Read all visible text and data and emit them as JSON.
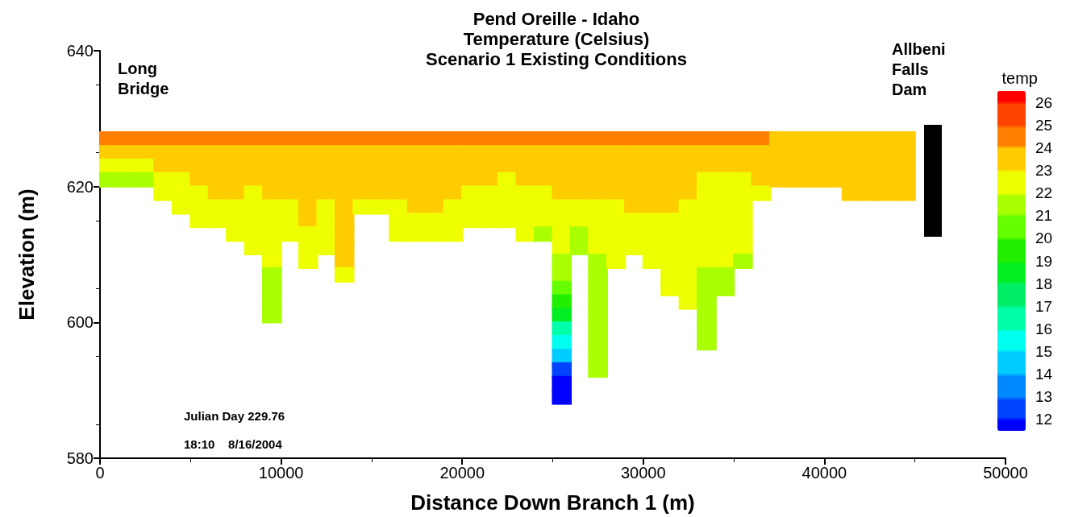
{
  "chart_data": {
    "type": "scatter",
    "title": "Pend Oreille - Idaho\nTemperature (Celsius)\nScenario 1 Existing Conditions",
    "xlabel": "Distance Down Branch 1 (m)",
    "ylabel": "Elevation (m)",
    "clabel": "temp",
    "annotations": [
      "Long Bridge",
      "Allbeni Falls Dam",
      "Julian Day 229.76",
      "18:10    8/16/2004"
    ],
    "xlim": [
      0,
      50000
    ],
    "xticks": [
      0,
      10000,
      20000,
      30000,
      40000,
      50000
    ],
    "ylim": [
      580,
      640
    ],
    "yticks": [
      580,
      600,
      620,
      640
    ],
    "clim": [
      11.5,
      26.5
    ],
    "cticks": [
      12,
      13,
      14,
      15,
      16,
      17,
      18,
      19,
      20,
      21,
      22,
      23,
      24,
      25,
      26
    ],
    "marker": "square",
    "grid": false,
    "series": [
      {
        "x": [
          500,
          500,
          500,
          500
        ],
        "values": [
          627,
          625,
          623,
          621
        ],
        "cvalues": [
          24.5,
          23.5,
          22.5,
          21.5
        ],
        "colors": [
          "#ff8000",
          "#ffcc00",
          "#eeff00",
          "#aaff00"
        ]
      },
      {
        "x": [
          1500,
          1500,
          1500,
          1500
        ],
        "values": [
          627,
          625,
          623,
          621
        ],
        "cvalues": [
          24.5,
          23.5,
          22.5,
          21.5
        ],
        "colors": [
          "#ff8000",
          "#ffcc00",
          "#eeff00",
          "#aaff00"
        ]
      },
      {
        "x": [
          2500,
          2500,
          2500,
          2500
        ],
        "values": [
          627,
          625,
          623,
          621
        ],
        "cvalues": [
          24.5,
          23.5,
          22.5,
          21.5
        ],
        "colors": [
          "#ff8000",
          "#ffcc00",
          "#eeff00",
          "#aaff00"
        ]
      },
      {
        "x": [
          3500,
          3500,
          3500,
          3500,
          3500
        ],
        "values": [
          627,
          625,
          623,
          621,
          619
        ],
        "cvalues": [
          24.5,
          23.5,
          23.5,
          22.5,
          22.5
        ],
        "colors": [
          "#ff8000",
          "#ffcc00",
          "#ffcc00",
          "#eeff00",
          "#eeff00"
        ]
      },
      {
        "x": [
          4500,
          4500,
          4500,
          4500,
          4500,
          4500
        ],
        "values": [
          627,
          625,
          623,
          621,
          619,
          617
        ],
        "cvalues": [
          24.5,
          23.5,
          23.5,
          22.5,
          22.5,
          22.5
        ],
        "colors": [
          "#ff8000",
          "#ffcc00",
          "#ffcc00",
          "#eeff00",
          "#eeff00",
          "#eeff00"
        ]
      },
      {
        "x": [
          5500,
          5500,
          5500,
          5500,
          5500,
          5500,
          5500
        ],
        "values": [
          627,
          625,
          623,
          621,
          619,
          617,
          615
        ],
        "cvalues": [
          24.5,
          23.5,
          23.5,
          23.5,
          22.5,
          22.5,
          22.5
        ],
        "colors": [
          "#ff8000",
          "#ffcc00",
          "#ffcc00",
          "#ffcc00",
          "#eeff00",
          "#eeff00",
          "#eeff00"
        ]
      },
      {
        "x": [
          6500,
          6500,
          6500,
          6500,
          6500,
          6500,
          6500
        ],
        "values": [
          627,
          625,
          623,
          621,
          619,
          617,
          615
        ],
        "cvalues": [
          24.5,
          23.5,
          23.5,
          23.5,
          23.5,
          22.5,
          22.5
        ],
        "colors": [
          "#ff8000",
          "#ffcc00",
          "#ffcc00",
          "#ffcc00",
          "#ffcc00",
          "#eeff00",
          "#eeff00"
        ]
      },
      {
        "x": [
          7500,
          7500,
          7500,
          7500,
          7500,
          7500,
          7500,
          7500
        ],
        "values": [
          627,
          625,
          623,
          621,
          619,
          617,
          615,
          613
        ],
        "cvalues": [
          24.5,
          23.5,
          23.5,
          23.5,
          23.5,
          22.5,
          22.5,
          22.5
        ],
        "colors": [
          "#ff8000",
          "#ffcc00",
          "#ffcc00",
          "#ffcc00",
          "#ffcc00",
          "#eeff00",
          "#eeff00",
          "#eeff00"
        ]
      },
      {
        "x": [
          8500,
          8500,
          8500,
          8500,
          8500,
          8500,
          8500,
          8500,
          8500
        ],
        "values": [
          627,
          625,
          623,
          621,
          619,
          617,
          615,
          613,
          611
        ],
        "cvalues": [
          24.5,
          23.5,
          23.5,
          23.5,
          22.5,
          22.5,
          22.5,
          22.5,
          22.5
        ],
        "colors": [
          "#ff8000",
          "#ffcc00",
          "#ffcc00",
          "#ffcc00",
          "#eeff00",
          "#eeff00",
          "#eeff00",
          "#eeff00",
          "#eeff00"
        ]
      },
      {
        "x": [
          9500,
          9500,
          9500,
          9500,
          9500,
          9500,
          9500,
          9500,
          9500,
          9500,
          9500,
          9500,
          9500,
          9500
        ],
        "values": [
          627,
          625,
          623,
          621,
          619,
          617,
          615,
          613,
          611,
          609,
          607,
          605,
          603,
          601
        ],
        "cvalues": [
          24.5,
          23.5,
          23.5,
          23.5,
          23.5,
          22.5,
          22.5,
          22.5,
          22.5,
          22.5,
          21.5,
          21.5,
          21.5,
          21.5
        ],
        "colors": [
          "#ff8000",
          "#ffcc00",
          "#ffcc00",
          "#ffcc00",
          "#ffcc00",
          "#eeff00",
          "#eeff00",
          "#eeff00",
          "#eeff00",
          "#eeff00",
          "#aaff00",
          "#aaff00",
          "#aaff00",
          "#aaff00"
        ]
      },
      {
        "x": [
          10500,
          10500,
          10500,
          10500,
          10500,
          10500,
          10500,
          10500
        ],
        "values": [
          627,
          625,
          623,
          621,
          619,
          617,
          615,
          613
        ],
        "cvalues": [
          24.5,
          23.5,
          23.5,
          23.5,
          23.5,
          22.5,
          22.5,
          22.5
        ],
        "colors": [
          "#ff8000",
          "#ffcc00",
          "#ffcc00",
          "#ffcc00",
          "#ffcc00",
          "#eeff00",
          "#eeff00",
          "#eeff00"
        ]
      },
      {
        "x": [
          11500,
          11500,
          11500,
          11500,
          11500,
          11500,
          11500,
          11500,
          11500,
          11500
        ],
        "values": [
          627,
          625,
          623,
          621,
          619,
          617,
          615,
          613,
          611,
          609
        ],
        "cvalues": [
          24.5,
          23.5,
          23.5,
          23.5,
          23.5,
          23.5,
          23.5,
          22.5,
          22.5,
          22.5
        ],
        "colors": [
          "#ff8000",
          "#ffcc00",
          "#ffcc00",
          "#ffcc00",
          "#ffcc00",
          "#ffcc00",
          "#ffcc00",
          "#eeff00",
          "#eeff00",
          "#eeff00"
        ]
      },
      {
        "x": [
          12500,
          12500,
          12500,
          12500,
          12500,
          12500,
          12500,
          12500,
          12500
        ],
        "values": [
          627,
          625,
          623,
          621,
          619,
          617,
          615,
          613,
          611
        ],
        "cvalues": [
          24.5,
          23.5,
          23.5,
          23.5,
          23.5,
          22.5,
          22.5,
          22.5,
          22.5
        ],
        "colors": [
          "#ff8000",
          "#ffcc00",
          "#ffcc00",
          "#ffcc00",
          "#ffcc00",
          "#eeff00",
          "#eeff00",
          "#eeff00",
          "#eeff00"
        ]
      },
      {
        "x": [
          13500,
          13500,
          13500,
          13500,
          13500,
          13500,
          13500,
          13500,
          13500,
          13500,
          13500
        ],
        "values": [
          627,
          625,
          623,
          621,
          619,
          617,
          615,
          613,
          611,
          609,
          607
        ],
        "cvalues": [
          24.5,
          23.5,
          23.5,
          23.5,
          23.5,
          23.5,
          23.5,
          23.5,
          23.5,
          23.5,
          22.5
        ],
        "colors": [
          "#ff8000",
          "#ffcc00",
          "#ffcc00",
          "#ffcc00",
          "#ffcc00",
          "#ffcc00",
          "#ffcc00",
          "#ffcc00",
          "#ffcc00",
          "#ffcc00",
          "#eeff00"
        ]
      },
      {
        "x": [
          14500,
          14500,
          14500,
          14500,
          14500,
          14500
        ],
        "values": [
          627,
          625,
          623,
          621,
          619,
          617
        ],
        "cvalues": [
          24.5,
          23.5,
          23.5,
          23.5,
          23.5,
          22.5
        ],
        "colors": [
          "#ff8000",
          "#ffcc00",
          "#ffcc00",
          "#ffcc00",
          "#ffcc00",
          "#eeff00"
        ]
      },
      {
        "x": [
          15500,
          15500,
          15500,
          15500,
          15500,
          15500
        ],
        "values": [
          627,
          625,
          623,
          621,
          619,
          617
        ],
        "cvalues": [
          24.5,
          23.5,
          23.5,
          23.5,
          23.5,
          22.5
        ],
        "colors": [
          "#ff8000",
          "#ffcc00",
          "#ffcc00",
          "#ffcc00",
          "#ffcc00",
          "#eeff00"
        ]
      },
      {
        "x": [
          16500,
          16500,
          16500,
          16500,
          16500,
          16500,
          16500,
          16500
        ],
        "values": [
          627,
          625,
          623,
          621,
          619,
          617,
          615,
          613
        ],
        "cvalues": [
          24.5,
          23.5,
          23.5,
          23.5,
          23.5,
          22.5,
          22.5,
          22.5
        ],
        "colors": [
          "#ff8000",
          "#ffcc00",
          "#ffcc00",
          "#ffcc00",
          "#ffcc00",
          "#eeff00",
          "#eeff00",
          "#eeff00"
        ]
      },
      {
        "x": [
          17500,
          17500,
          17500,
          17500,
          17500,
          17500,
          17500,
          17500
        ],
        "values": [
          627,
          625,
          623,
          621,
          619,
          617,
          615,
          613
        ],
        "cvalues": [
          24.5,
          23.5,
          23.5,
          23.5,
          23.5,
          23.5,
          22.5,
          22.5
        ],
        "colors": [
          "#ff8000",
          "#ffcc00",
          "#ffcc00",
          "#ffcc00",
          "#ffcc00",
          "#ffcc00",
          "#eeff00",
          "#eeff00"
        ]
      },
      {
        "x": [
          18500,
          18500,
          18500,
          18500,
          18500,
          18500,
          18500,
          18500
        ],
        "values": [
          627,
          625,
          623,
          621,
          619,
          617,
          615,
          613
        ],
        "cvalues": [
          24.5,
          23.5,
          23.5,
          23.5,
          23.5,
          23.5,
          22.5,
          22.5
        ],
        "colors": [
          "#ff8000",
          "#ffcc00",
          "#ffcc00",
          "#ffcc00",
          "#ffcc00",
          "#ffcc00",
          "#eeff00",
          "#eeff00"
        ]
      },
      {
        "x": [
          19500,
          19500,
          19500,
          19500,
          19500,
          19500,
          19500,
          19500
        ],
        "values": [
          627,
          625,
          623,
          621,
          619,
          617,
          615,
          613
        ],
        "cvalues": [
          24.5,
          23.5,
          23.5,
          23.5,
          23.5,
          22.5,
          22.5,
          22.5
        ],
        "colors": [
          "#ff8000",
          "#ffcc00",
          "#ffcc00",
          "#ffcc00",
          "#ffcc00",
          "#eeff00",
          "#eeff00",
          "#eeff00"
        ]
      },
      {
        "x": [
          20500,
          20500,
          20500,
          20500,
          20500,
          20500,
          20500
        ],
        "values": [
          627,
          625,
          623,
          621,
          619,
          617,
          615
        ],
        "cvalues": [
          24.5,
          23.5,
          23.5,
          23.5,
          22.5,
          22.5,
          22.5
        ],
        "colors": [
          "#ff8000",
          "#ffcc00",
          "#ffcc00",
          "#ffcc00",
          "#eeff00",
          "#eeff00",
          "#eeff00"
        ]
      },
      {
        "x": [
          21500,
          21500,
          21500,
          21500,
          21500,
          21500,
          21500
        ],
        "values": [
          627,
          625,
          623,
          621,
          619,
          617,
          615
        ],
        "cvalues": [
          24.5,
          23.5,
          23.5,
          23.5,
          22.5,
          22.5,
          22.5
        ],
        "colors": [
          "#ff8000",
          "#ffcc00",
          "#ffcc00",
          "#ffcc00",
          "#eeff00",
          "#eeff00",
          "#eeff00"
        ]
      },
      {
        "x": [
          22500,
          22500,
          22500,
          22500,
          22500,
          22500,
          22500
        ],
        "values": [
          627,
          625,
          623,
          621,
          619,
          617,
          615
        ],
        "cvalues": [
          24.5,
          23.5,
          23.5,
          22.5,
          22.5,
          22.5,
          22.5
        ],
        "colors": [
          "#ff8000",
          "#ffcc00",
          "#ffcc00",
          "#eeff00",
          "#eeff00",
          "#eeff00",
          "#eeff00"
        ]
      },
      {
        "x": [
          23500,
          23500,
          23500,
          23500,
          23500,
          23500,
          23500,
          23500
        ],
        "values": [
          627,
          625,
          623,
          621,
          619,
          617,
          615,
          613
        ],
        "cvalues": [
          24.5,
          23.5,
          23.5,
          23.5,
          22.5,
          22.5,
          22.5,
          22.5
        ],
        "colors": [
          "#ff8000",
          "#ffcc00",
          "#ffcc00",
          "#ffcc00",
          "#eeff00",
          "#eeff00",
          "#eeff00",
          "#eeff00"
        ]
      },
      {
        "x": [
          24500,
          24500,
          24500,
          24500,
          24500,
          24500,
          24500,
          24500
        ],
        "values": [
          627,
          625,
          623,
          621,
          619,
          617,
          615,
          613
        ],
        "cvalues": [
          24.5,
          23.5,
          23.5,
          23.5,
          22.5,
          22.5,
          22.5,
          21.5
        ],
        "colors": [
          "#ff8000",
          "#ffcc00",
          "#ffcc00",
          "#ffcc00",
          "#eeff00",
          "#eeff00",
          "#eeff00",
          "#aaff00"
        ]
      },
      {
        "x": [
          25500,
          25500,
          25500,
          25500,
          25500,
          25500,
          25500,
          25500,
          25500,
          25500,
          25500,
          25500,
          25500,
          25500,
          25500,
          25500,
          25500,
          25500,
          25500,
          25500
        ],
        "values": [
          627,
          625,
          623,
          621,
          619,
          617,
          615,
          613,
          611,
          609,
          607,
          605,
          603,
          601,
          599,
          597,
          595,
          593,
          591,
          589
        ],
        "cvalues": [
          24.5,
          23.5,
          23.5,
          23.5,
          23.5,
          22.5,
          22.5,
          22.5,
          22.5,
          21.5,
          21.5,
          20.5,
          19.5,
          18.5,
          16.5,
          15.5,
          14.5,
          12.5,
          11.5,
          11.5
        ],
        "colors": [
          "#ff8000",
          "#ffcc00",
          "#ffcc00",
          "#ffcc00",
          "#ffcc00",
          "#eeff00",
          "#eeff00",
          "#eeff00",
          "#eeff00",
          "#aaff00",
          "#aaff00",
          "#66ff00",
          "#22ee00",
          "#00ee22",
          "#00ffaa",
          "#00ffee",
          "#00ccff",
          "#0044ff",
          "#0000ff",
          "#0000ff"
        ]
      },
      {
        "x": [
          26500,
          26500,
          26500,
          26500,
          26500,
          26500,
          26500,
          26500,
          26500
        ],
        "values": [
          627,
          625,
          623,
          621,
          619,
          617,
          615,
          613,
          611
        ],
        "cvalues": [
          24.5,
          23.5,
          23.5,
          23.5,
          23.5,
          22.5,
          22.5,
          21.5,
          21.5
        ],
        "colors": [
          "#ff8000",
          "#ffcc00",
          "#ffcc00",
          "#ffcc00",
          "#ffcc00",
          "#eeff00",
          "#eeff00",
          "#aaff00",
          "#aaff00"
        ]
      },
      {
        "x": [
          27500,
          27500,
          27500,
          27500,
          27500,
          27500,
          27500,
          27500,
          27500,
          27500,
          27500,
          27500,
          27500,
          27500,
          27500,
          27500,
          27500,
          27500
        ],
        "values": [
          627,
          625,
          623,
          621,
          619,
          617,
          615,
          613,
          611,
          609,
          607,
          605,
          603,
          601,
          599,
          597,
          595,
          593
        ],
        "cvalues": [
          24.5,
          23.5,
          23.5,
          23.5,
          23.5,
          22.5,
          22.5,
          22.5,
          22.5,
          21.5,
          21.5,
          21.5,
          21.5,
          21.5,
          21.5,
          21.5,
          21.5,
          21.5
        ],
        "colors": [
          "#ff8000",
          "#ffcc00",
          "#ffcc00",
          "#ffcc00",
          "#ffcc00",
          "#eeff00",
          "#eeff00",
          "#eeff00",
          "#eeff00",
          "#aaff00",
          "#aaff00",
          "#aaff00",
          "#aaff00",
          "#aaff00",
          "#aaff00",
          "#aaff00",
          "#aaff00",
          "#aaff00"
        ]
      },
      {
        "x": [
          28500,
          28500,
          28500,
          28500,
          28500,
          28500,
          28500,
          28500,
          28500,
          28500
        ],
        "values": [
          627,
          625,
          623,
          621,
          619,
          617,
          615,
          613,
          611,
          609
        ],
        "cvalues": [
          24.5,
          23.5,
          23.5,
          23.5,
          23.5,
          22.5,
          22.5,
          22.5,
          22.5,
          22.5
        ],
        "colors": [
          "#ff8000",
          "#ffcc00",
          "#ffcc00",
          "#ffcc00",
          "#ffcc00",
          "#eeff00",
          "#eeff00",
          "#eeff00",
          "#eeff00",
          "#eeff00"
        ]
      },
      {
        "x": [
          29500,
          29500,
          29500,
          29500,
          29500,
          29500,
          29500,
          29500,
          29500
        ],
        "values": [
          627,
          625,
          623,
          621,
          619,
          617,
          615,
          613,
          611
        ],
        "cvalues": [
          24.5,
          23.5,
          23.5,
          23.5,
          23.5,
          23.5,
          22.5,
          22.5,
          22.5
        ],
        "colors": [
          "#ff8000",
          "#ffcc00",
          "#ffcc00",
          "#ffcc00",
          "#ffcc00",
          "#ffcc00",
          "#eeff00",
          "#eeff00",
          "#eeff00"
        ]
      },
      {
        "x": [
          30500,
          30500,
          30500,
          30500,
          30500,
          30500,
          30500,
          30500,
          30500,
          30500
        ],
        "values": [
          627,
          625,
          623,
          621,
          619,
          617,
          615,
          613,
          611,
          609
        ],
        "cvalues": [
          24.5,
          23.5,
          23.5,
          23.5,
          23.5,
          23.5,
          22.5,
          22.5,
          22.5,
          22.5
        ],
        "colors": [
          "#ff8000",
          "#ffcc00",
          "#ffcc00",
          "#ffcc00",
          "#ffcc00",
          "#ffcc00",
          "#eeff00",
          "#eeff00",
          "#eeff00",
          "#eeff00"
        ]
      },
      {
        "x": [
          31500,
          31500,
          31500,
          31500,
          31500,
          31500,
          31500,
          31500,
          31500,
          31500,
          31500,
          31500
        ],
        "values": [
          627,
          625,
          623,
          621,
          619,
          617,
          615,
          613,
          611,
          609,
          607,
          605
        ],
        "cvalues": [
          24.5,
          23.5,
          23.5,
          23.5,
          23.5,
          23.5,
          22.5,
          22.5,
          22.5,
          22.5,
          22.5,
          22.5
        ],
        "colors": [
          "#ff8000",
          "#ffcc00",
          "#ffcc00",
          "#ffcc00",
          "#ffcc00",
          "#ffcc00",
          "#eeff00",
          "#eeff00",
          "#eeff00",
          "#eeff00",
          "#eeff00",
          "#eeff00"
        ]
      },
      {
        "x": [
          32500,
          32500,
          32500,
          32500,
          32500,
          32500,
          32500,
          32500,
          32500,
          32500,
          32500,
          32500,
          32500
        ],
        "values": [
          627,
          625,
          623,
          621,
          619,
          617,
          615,
          613,
          611,
          609,
          607,
          605,
          603
        ],
        "cvalues": [
          24.5,
          23.5,
          23.5,
          23.5,
          23.5,
          22.5,
          22.5,
          22.5,
          22.5,
          22.5,
          22.5,
          22.5,
          22.5
        ],
        "colors": [
          "#ff8000",
          "#ffcc00",
          "#ffcc00",
          "#ffcc00",
          "#ffcc00",
          "#eeff00",
          "#eeff00",
          "#eeff00",
          "#eeff00",
          "#eeff00",
          "#eeff00",
          "#eeff00",
          "#eeff00"
        ]
      },
      {
        "x": [
          33500,
          33500,
          33500,
          33500,
          33500,
          33500,
          33500,
          33500,
          33500,
          33500,
          33500,
          33500,
          33500,
          33500,
          33500,
          33500
        ],
        "values": [
          627,
          625,
          623,
          621,
          619,
          617,
          615,
          613,
          611,
          609,
          607,
          605,
          603,
          601,
          599,
          597
        ],
        "cvalues": [
          24.5,
          23.5,
          23.5,
          22.5,
          22.5,
          22.5,
          22.5,
          22.5,
          22.5,
          22.5,
          21.5,
          21.5,
          21.5,
          21.5,
          21.5,
          21.5
        ],
        "colors": [
          "#ff8000",
          "#ffcc00",
          "#ffcc00",
          "#eeff00",
          "#eeff00",
          "#eeff00",
          "#eeff00",
          "#eeff00",
          "#eeff00",
          "#eeff00",
          "#aaff00",
          "#aaff00",
          "#aaff00",
          "#aaff00",
          "#aaff00",
          "#aaff00"
        ]
      },
      {
        "x": [
          34500,
          34500,
          34500,
          34500,
          34500,
          34500,
          34500,
          34500,
          34500,
          34500,
          34500,
          34500
        ],
        "values": [
          627,
          625,
          623,
          621,
          619,
          617,
          615,
          613,
          611,
          609,
          607,
          605
        ],
        "cvalues": [
          24.5,
          23.5,
          23.5,
          22.5,
          22.5,
          22.5,
          22.5,
          22.5,
          22.5,
          22.5,
          21.5,
          21.5
        ],
        "colors": [
          "#ff8000",
          "#ffcc00",
          "#ffcc00",
          "#eeff00",
          "#eeff00",
          "#eeff00",
          "#eeff00",
          "#eeff00",
          "#eeff00",
          "#eeff00",
          "#aaff00",
          "#aaff00"
        ]
      },
      {
        "x": [
          35500,
          35500,
          35500,
          35500,
          35500,
          35500,
          35500,
          35500,
          35500,
          35500
        ],
        "values": [
          627,
          625,
          623,
          621,
          619,
          617,
          615,
          613,
          611,
          609
        ],
        "cvalues": [
          24.5,
          23.5,
          23.5,
          22.5,
          22.5,
          22.5,
          22.5,
          22.5,
          22.5,
          21.5
        ],
        "colors": [
          "#ff8000",
          "#ffcc00",
          "#ffcc00",
          "#eeff00",
          "#eeff00",
          "#eeff00",
          "#eeff00",
          "#eeff00",
          "#eeff00",
          "#aaff00"
        ]
      },
      {
        "x": [
          36500,
          36500,
          36500,
          36500,
          36500
        ],
        "values": [
          627,
          625,
          623,
          621,
          619
        ],
        "cvalues": [
          24.5,
          23.5,
          23.5,
          23.5,
          22.5
        ],
        "colors": [
          "#ff8000",
          "#ffcc00",
          "#ffcc00",
          "#ffcc00",
          "#eeff00"
        ]
      },
      {
        "x": [
          37500,
          37500,
          37500,
          37500
        ],
        "values": [
          627,
          625,
          623,
          621
        ],
        "cvalues": [
          23.5,
          23.5,
          23.5,
          23.5
        ],
        "color": "#ffcc00"
      },
      {
        "x": [
          38500,
          38500,
          38500,
          38500
        ],
        "values": [
          627,
          625,
          623,
          621
        ],
        "cvalues": [
          23.5,
          23.5,
          23.5,
          23.5
        ],
        "color": "#ffcc00"
      },
      {
        "x": [
          39500,
          39500,
          39500,
          39500
        ],
        "values": [
          627,
          625,
          623,
          621
        ],
        "cvalues": [
          23.5,
          23.5,
          23.5,
          23.5
        ],
        "color": "#ffcc00"
      },
      {
        "x": [
          40500,
          40500,
          40500,
          40500
        ],
        "values": [
          627,
          625,
          623,
          621
        ],
        "cvalues": [
          23.5,
          23.5,
          23.5,
          23.5
        ],
        "color": "#ffcc00"
      },
      {
        "x": [
          41500,
          41500,
          41500,
          41500,
          41500
        ],
        "values": [
          627,
          625,
          623,
          621,
          619
        ],
        "cvalues": [
          23.5,
          23.5,
          23.5,
          23.5,
          23.5
        ],
        "color": "#ffcc00"
      },
      {
        "x": [
          42500,
          42500,
          42500,
          42500,
          42500
        ],
        "values": [
          627,
          625,
          623,
          621,
          619
        ],
        "cvalues": [
          23.5,
          23.5,
          23.5,
          23.5,
          23.5
        ],
        "color": "#ffcc00"
      },
      {
        "x": [
          43500,
          43500,
          43500,
          43500,
          43500
        ],
        "values": [
          627,
          625,
          623,
          621,
          619
        ],
        "cvalues": [
          23.5,
          23.5,
          23.5,
          23.5,
          23.5
        ],
        "color": "#ffcc00"
      },
      {
        "x": [
          44500,
          44500,
          44500,
          44500,
          44500
        ],
        "values": [
          627,
          625,
          623,
          621,
          619
        ],
        "cvalues": [
          23.5,
          23.5,
          23.5,
          23.5,
          23.5
        ],
        "color": "#ffcc00"
      }
    ]
  }
}
